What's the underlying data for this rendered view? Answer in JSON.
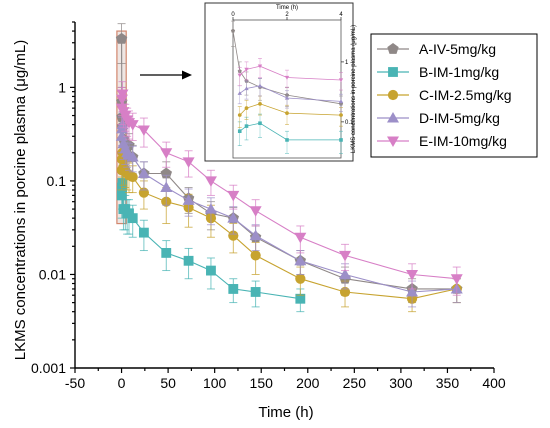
{
  "chart_data": {
    "type": "line",
    "xlabel": "Time (h)",
    "ylabel": "LKMS concentrations in porcine plasma (μg/mL)",
    "xlim": [
      -50,
      400
    ],
    "ylim": [
      0.001,
      5
    ],
    "y_scale": "log",
    "x_ticks": [
      -50,
      0,
      50,
      100,
      150,
      200,
      250,
      300,
      350,
      400
    ],
    "y_ticks": [
      {
        "value": 0.001,
        "label": "0.001"
      },
      {
        "value": 0.01,
        "label": "0.01"
      },
      {
        "value": 0.1,
        "label": "0.1"
      },
      {
        "value": 1,
        "label": "1"
      }
    ],
    "legend_position": "top-right",
    "highlight_region": {
      "x_range": [
        -5,
        5
      ],
      "y_range": [
        0.035,
        4.0
      ]
    },
    "series": [
      {
        "name": "A-IV-5mg/kg",
        "color": "#8f8887",
        "marker": "pentagon",
        "x": [
          0,
          0.25,
          0.5,
          1,
          2,
          4,
          6,
          8,
          12,
          24,
          48,
          72,
          96,
          120,
          144,
          192,
          240,
          312,
          360
        ],
        "y": [
          3.3,
          0.7,
          0.48,
          0.38,
          0.28,
          0.2,
          0.18,
          0.24,
          0.18,
          0.12,
          0.12,
          0.065,
          0.045,
          0.04,
          0.025,
          0.014,
          0.009,
          0.007,
          0.007
        ],
        "err": [
          1.5,
          0.3,
          0.2,
          0.15,
          0.1,
          0.07,
          0.06,
          0.08,
          0.06,
          0.04,
          0.04,
          0.02,
          0.015,
          0.012,
          0.008,
          0.004,
          0.003,
          0.002,
          0.002
        ]
      },
      {
        "name": "B-IM-1mg/kg",
        "color": "#49b4b4",
        "marker": "square",
        "x": [
          0.25,
          0.5,
          1,
          2,
          4,
          6,
          8,
          12,
          24,
          48,
          72,
          96,
          120,
          144,
          192
        ],
        "y": [
          0.07,
          0.085,
          0.095,
          0.05,
          0.05,
          0.045,
          0.045,
          0.04,
          0.028,
          0.017,
          0.014,
          0.011,
          0.007,
          0.0065,
          0.0055
        ],
        "err": [
          0.03,
          0.035,
          0.04,
          0.02,
          0.02,
          0.018,
          0.018,
          0.015,
          0.01,
          0.006,
          0.005,
          0.004,
          0.002,
          0.002,
          0.0015
        ]
      },
      {
        "name": "C-IM-2.5mg/kg",
        "color": "#c7a32f",
        "marker": "circle",
        "x": [
          0.25,
          0.5,
          1,
          2,
          4,
          6,
          8,
          12,
          24,
          48,
          72,
          96,
          120,
          144,
          192,
          240,
          312,
          360
        ],
        "y": [
          0.13,
          0.17,
          0.2,
          0.14,
          0.13,
          0.12,
          0.115,
          0.11,
          0.075,
          0.06,
          0.052,
          0.04,
          0.026,
          0.016,
          0.009,
          0.0065,
          0.0055,
          0.007
        ],
        "err": [
          0.05,
          0.06,
          0.07,
          0.05,
          0.045,
          0.04,
          0.04,
          0.035,
          0.025,
          0.025,
          0.02,
          0.015,
          0.009,
          0.006,
          0.003,
          0.002,
          0.0015,
          0.002
        ]
      },
      {
        "name": "D-IM-5mg/kg",
        "color": "#9c8fc8",
        "marker": "triangle-up",
        "x": [
          0.25,
          0.5,
          1,
          2,
          4,
          6,
          8,
          12,
          24,
          48,
          72,
          96,
          120,
          144,
          192,
          240,
          312,
          360
        ],
        "y": [
          0.3,
          0.36,
          0.4,
          0.25,
          0.22,
          0.2,
          0.19,
          0.18,
          0.12,
          0.085,
          0.062,
          0.05,
          0.04,
          0.026,
          0.014,
          0.01,
          0.0065,
          0.007
        ],
        "err": [
          0.1,
          0.12,
          0.13,
          0.08,
          0.07,
          0.06,
          0.06,
          0.055,
          0.04,
          0.03,
          0.02,
          0.016,
          0.013,
          0.008,
          0.004,
          0.003,
          0.002,
          0.002
        ]
      },
      {
        "name": "E-IM-10mg/kg",
        "color": "#d77fc6",
        "marker": "triangle-down",
        "x": [
          0.25,
          0.5,
          1,
          2,
          4,
          6,
          8,
          12,
          24,
          48,
          72,
          96,
          120,
          144,
          192,
          240,
          312,
          360
        ],
        "y": [
          0.6,
          0.75,
          0.85,
          0.55,
          0.5,
          0.45,
          0.42,
          0.4,
          0.35,
          0.2,
          0.16,
          0.1,
          0.07,
          0.048,
          0.025,
          0.016,
          0.01,
          0.009
        ],
        "err": [
          0.2,
          0.25,
          0.3,
          0.18,
          0.16,
          0.15,
          0.14,
          0.13,
          0.12,
          0.06,
          0.05,
          0.03,
          0.02,
          0.015,
          0.008,
          0.005,
          0.003,
          0.003
        ]
      }
    ],
    "inset": {
      "xlabel": "Time (h)",
      "ylabel": "LKMS concentrations in porcine plasma (μg/mL)",
      "xlim": [
        0,
        4
      ],
      "x_ticks": [
        0,
        2,
        4
      ],
      "y_ticks": [
        {
          "value": 1,
          "label": "1"
        },
        {
          "value": 0.1,
          "label": "0.1"
        }
      ]
    }
  }
}
